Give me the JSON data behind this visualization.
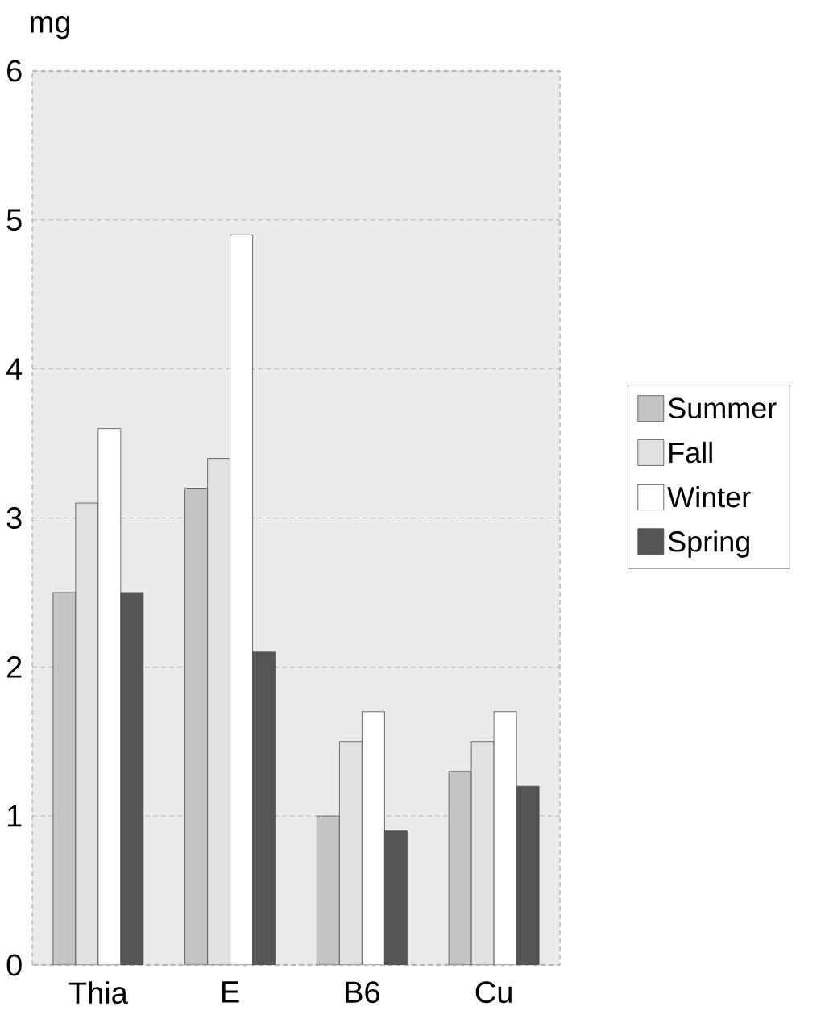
{
  "chart_data": {
    "type": "bar",
    "ylabel": "mg",
    "categories": [
      "Thia",
      "E",
      "B6",
      "Cu"
    ],
    "series": [
      {
        "name": "Summer",
        "color": "#c4c4c4",
        "values": [
          2.5,
          3.2,
          1.0,
          1.3
        ]
      },
      {
        "name": "Fall",
        "color": "#e2e2e2",
        "values": [
          3.1,
          3.4,
          1.5,
          1.5
        ]
      },
      {
        "name": "Winter",
        "color": "#ffffff",
        "values": [
          3.6,
          4.9,
          1.7,
          1.7
        ]
      },
      {
        "name": "Spring",
        "color": "#555555",
        "values": [
          2.5,
          2.1,
          0.9,
          1.2
        ]
      }
    ],
    "ylim": [
      0,
      6
    ],
    "yticks": [
      0,
      1,
      2,
      3,
      4,
      5,
      6
    ],
    "grid": "y",
    "legend": "right"
  }
}
